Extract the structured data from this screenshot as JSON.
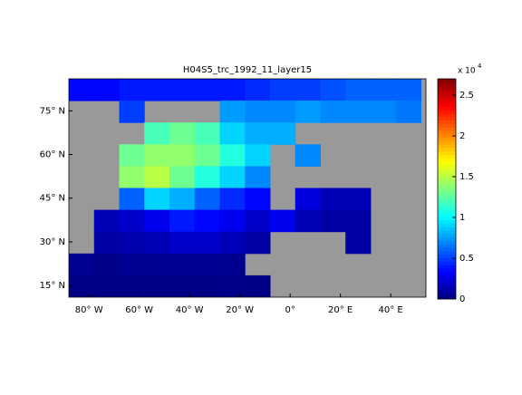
{
  "chart_data": {
    "type": "heatmap",
    "title": "H04S5_trc_1992_11_layer15",
    "x": [
      -83,
      -73,
      -63,
      -53,
      -43,
      -33,
      -23,
      -13,
      -3,
      7,
      17,
      27,
      37,
      47
    ],
    "y": [
      82.25,
      74.75,
      67.25,
      59.75,
      52.25,
      44.75,
      37.25,
      29.75,
      22.25,
      14.75
    ],
    "values": [
      [
        0.35,
        0.35,
        0.4,
        0.4,
        0.4,
        0.4,
        0.4,
        0.45,
        0.5,
        0.5,
        0.55,
        0.6,
        0.6,
        0.6
      ],
      [
        null,
        null,
        0.5,
        null,
        null,
        null,
        0.75,
        0.7,
        0.7,
        0.75,
        0.7,
        0.7,
        0.7,
        0.65
      ],
      [
        null,
        null,
        null,
        1.2,
        1.3,
        1.2,
        0.9,
        0.8,
        0.8,
        null,
        null,
        null,
        null,
        null
      ],
      [
        null,
        null,
        1.3,
        1.4,
        1.4,
        1.3,
        1.1,
        0.9,
        null,
        0.7,
        null,
        null,
        null,
        null
      ],
      [
        null,
        null,
        1.4,
        1.5,
        1.3,
        1.1,
        0.9,
        0.7,
        null,
        null,
        null,
        null,
        null,
        null
      ],
      [
        null,
        null,
        0.6,
        0.9,
        0.8,
        0.6,
        0.45,
        0.35,
        null,
        0.25,
        0.15,
        0.15,
        null,
        null
      ],
      [
        null,
        0.15,
        0.2,
        0.3,
        0.4,
        0.35,
        0.3,
        0.2,
        0.3,
        0.15,
        0.1,
        0.1,
        null,
        null
      ],
      [
        null,
        0.1,
        0.12,
        0.15,
        0.2,
        0.2,
        0.15,
        0.1,
        null,
        null,
        null,
        0.1,
        null,
        null
      ],
      [
        0.05,
        0.03,
        0.05,
        0.05,
        0.06,
        0.06,
        0.04,
        null,
        null,
        null,
        null,
        null,
        null,
        null
      ],
      [
        0.02,
        0.02,
        0.02,
        0.02,
        0.02,
        0.02,
        0.03,
        0.02,
        null,
        null,
        null,
        null,
        null,
        null
      ]
    ],
    "xlim": [
      -88,
      54
    ],
    "ylim": [
      11,
      86
    ],
    "xticks": [
      {
        "value": -80,
        "label": "80° W"
      },
      {
        "value": -60,
        "label": "60° W"
      },
      {
        "value": -40,
        "label": "40° W"
      },
      {
        "value": -20,
        "label": "20° W"
      },
      {
        "value": 0,
        "label": "0°"
      },
      {
        "value": 20,
        "label": "20° E"
      },
      {
        "value": 40,
        "label": "40° E"
      }
    ],
    "yticks": [
      {
        "value": 15,
        "label": "15° N"
      },
      {
        "value": 30,
        "label": "30° N"
      },
      {
        "value": 45,
        "label": "45° N"
      },
      {
        "value": 60,
        "label": "60° N"
      },
      {
        "value": 75,
        "label": "75° N"
      }
    ],
    "colormap": "jet",
    "land_color": "#999999",
    "clim": [
      0,
      2.7
    ],
    "cticks": [
      0,
      0.5,
      1,
      1.5,
      2,
      2.5
    ],
    "colorbar_exponent": {
      "base": "x 10",
      "power": "4"
    }
  }
}
